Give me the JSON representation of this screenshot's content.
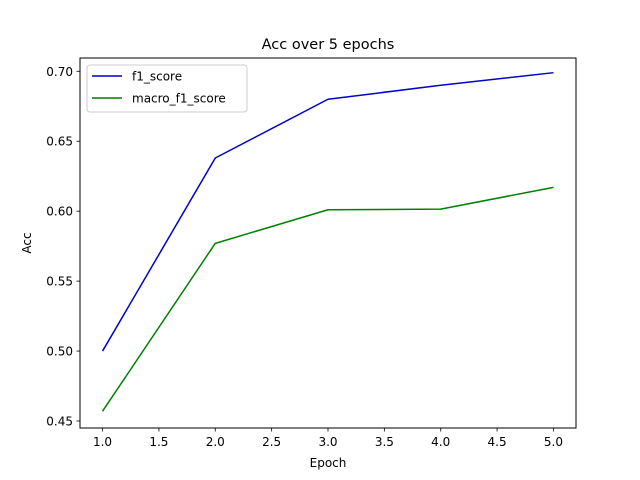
{
  "chart_data": {
    "type": "line",
    "title": "Acc over 5 epochs",
    "xlabel": "Epoch",
    "ylabel": "Acc",
    "x": [
      1.0,
      2.0,
      3.0,
      4.0,
      5.0
    ],
    "xlim": [
      0.8,
      5.2
    ],
    "ylim": [
      0.445,
      0.7095
    ],
    "xticks": [
      1.0,
      1.5,
      2.0,
      2.5,
      3.0,
      3.5,
      4.0,
      4.5,
      5.0
    ],
    "xtick_labels": [
      "1.0",
      "1.5",
      "2.0",
      "2.5",
      "3.0",
      "3.5",
      "4.0",
      "4.5",
      "5.0"
    ],
    "yticks": [
      0.45,
      0.5,
      0.55,
      0.6,
      0.65,
      0.7
    ],
    "ytick_labels": [
      "0.45",
      "0.50",
      "0.55",
      "0.60",
      "0.65",
      "0.70"
    ],
    "grid": false,
    "legend_position": "top-left",
    "series": [
      {
        "name": "f1_score",
        "color": "#0000cc",
        "values": [
          0.5,
          0.638,
          0.68,
          0.69,
          0.699
        ]
      },
      {
        "name": "macro_f1_score",
        "color": "#007f00",
        "values": [
          0.457,
          0.577,
          0.601,
          0.6015,
          0.617
        ]
      }
    ]
  }
}
